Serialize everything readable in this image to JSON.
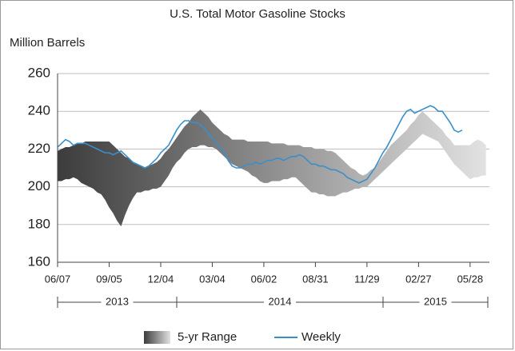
{
  "chart_data": {
    "type": "line",
    "title": "U.S. Total Motor Gasoline Stocks",
    "y_label": "Million Barrels",
    "years": [
      "2013",
      "2014",
      "2015"
    ],
    "categories": [
      "06/07",
      null,
      null,
      null,
      null,
      null,
      null,
      null,
      null,
      null,
      null,
      null,
      null,
      "09/05",
      null,
      null,
      null,
      null,
      null,
      null,
      null,
      null,
      null,
      null,
      null,
      null,
      "12/04",
      null,
      null,
      null,
      null,
      null,
      null,
      null,
      null,
      null,
      null,
      null,
      null,
      "03/04",
      null,
      null,
      null,
      null,
      null,
      null,
      null,
      null,
      null,
      null,
      null,
      null,
      "06/02",
      null,
      null,
      null,
      null,
      null,
      null,
      null,
      null,
      null,
      null,
      null,
      null,
      "08/31",
      null,
      null,
      null,
      null,
      null,
      null,
      null,
      null,
      null,
      null,
      null,
      null,
      "11/29",
      null,
      null,
      null,
      null,
      null,
      null,
      null,
      null,
      null,
      null,
      null,
      null,
      "02/27",
      null,
      null,
      null,
      null,
      null,
      null,
      null,
      null,
      null,
      null,
      null,
      null,
      "05/28",
      null,
      null,
      null,
      null
    ],
    "series": [
      {
        "name": "5-yr Range",
        "kind": "range",
        "color": [
          "#3c3c3c",
          "#e2e2e2"
        ],
        "high": [
          219,
          220,
          221,
          221,
          222,
          223,
          223,
          224,
          224,
          224,
          224,
          224,
          224,
          224,
          222,
          220,
          218,
          216,
          215,
          213,
          212,
          211,
          210,
          211,
          212,
          213,
          215,
          218,
          220,
          223,
          226,
          229,
          232,
          234,
          237,
          239,
          241,
          239,
          237,
          234,
          232,
          230,
          228,
          227,
          225,
          225,
          225,
          225,
          224,
          224,
          224,
          224,
          224,
          224,
          223,
          223,
          223,
          223,
          222,
          222,
          222,
          222,
          221,
          221,
          221,
          220,
          220,
          220,
          219,
          219,
          218,
          216,
          214,
          212,
          210,
          209,
          207,
          206,
          207,
          209,
          210,
          213,
          216,
          219,
          222,
          224,
          226,
          228,
          230,
          233,
          235,
          238,
          240,
          238,
          236,
          234,
          232,
          230,
          227,
          225,
          222,
          222,
          222,
          222,
          222,
          224,
          225,
          224,
          222
        ],
        "low": [
          203,
          203,
          204,
          204,
          205,
          204,
          202,
          201,
          200,
          199,
          197,
          196,
          193,
          189,
          186,
          182,
          179,
          185,
          190,
          194,
          197,
          197,
          198,
          198,
          199,
          199,
          200,
          203,
          206,
          210,
          213,
          215,
          218,
          220,
          221,
          221,
          222,
          222,
          221,
          221,
          220,
          218,
          216,
          214,
          212,
          211,
          210,
          209,
          208,
          206,
          205,
          203,
          202,
          202,
          203,
          203,
          203,
          204,
          204,
          205,
          205,
          203,
          201,
          199,
          197,
          197,
          196,
          196,
          195,
          195,
          195,
          196,
          197,
          197,
          198,
          199,
          199,
          200,
          200,
          202,
          204,
          206,
          208,
          210,
          212,
          214,
          216,
          218,
          220,
          222,
          224,
          226,
          228,
          227,
          226,
          225,
          224,
          221,
          218,
          215,
          212,
          210,
          208,
          206,
          204,
          205,
          205,
          206,
          206
        ]
      },
      {
        "name": "Weekly",
        "color": "#3a8fc9",
        "values": [
          221,
          223,
          225,
          224,
          222,
          223,
          223,
          223,
          222,
          221,
          220,
          219,
          218,
          218,
          217,
          218,
          219,
          217,
          215,
          213,
          212,
          211,
          210,
          211,
          213,
          215,
          218,
          220,
          222,
          226,
          230,
          233,
          235,
          235,
          234,
          234,
          233,
          231,
          228,
          226,
          223,
          221,
          218,
          214,
          211,
          210,
          210,
          211,
          212,
          212,
          213,
          212,
          213,
          214,
          214,
          215,
          215,
          214,
          215,
          216,
          216,
          217,
          216,
          214,
          212,
          212,
          211,
          211,
          210,
          209,
          209,
          208,
          207,
          205,
          204,
          203,
          202,
          203,
          204,
          207,
          210,
          214,
          218,
          221,
          225,
          229,
          233,
          237,
          240,
          241,
          239,
          240,
          241,
          242,
          243,
          242,
          240,
          240,
          237,
          234,
          230,
          229,
          230,
          null,
          null,
          null,
          null,
          null,
          null
        ]
      }
    ],
    "ylim": [
      160,
      260
    ],
    "yticks": [
      160,
      180,
      200,
      220,
      240,
      260
    ],
    "grid": true
  }
}
